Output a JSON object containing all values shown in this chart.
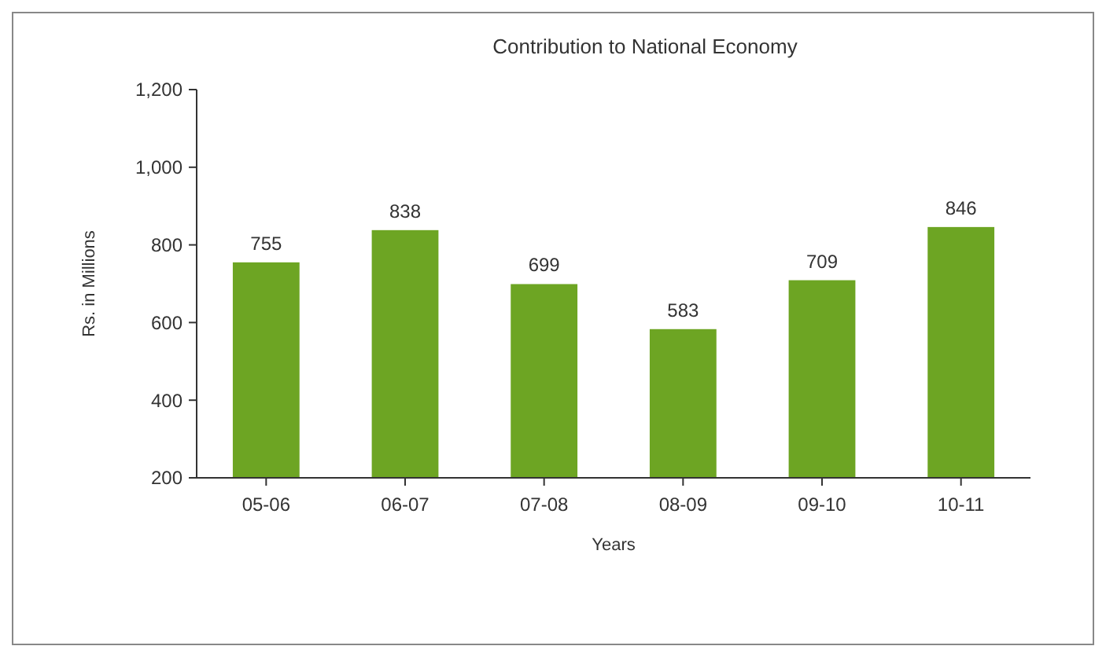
{
  "chart_data": {
    "type": "bar",
    "title": "Contribution to National Economy",
    "xlabel": "Years",
    "ylabel": "Rs. in Millions",
    "categories": [
      "05-06",
      "06-07",
      "07-08",
      "08-09",
      "09-10",
      "10-11"
    ],
    "values": [
      755,
      838,
      699,
      583,
      709,
      846
    ],
    "color": "#6da523",
    "ylim": [
      200,
      1200
    ],
    "yticks": [
      200,
      400,
      600,
      800,
      {
        "value": 1000,
        "label": "1,000"
      },
      {
        "value": 1200,
        "label": "1,200"
      }
    ],
    "grid": false,
    "data_labels": true
  }
}
